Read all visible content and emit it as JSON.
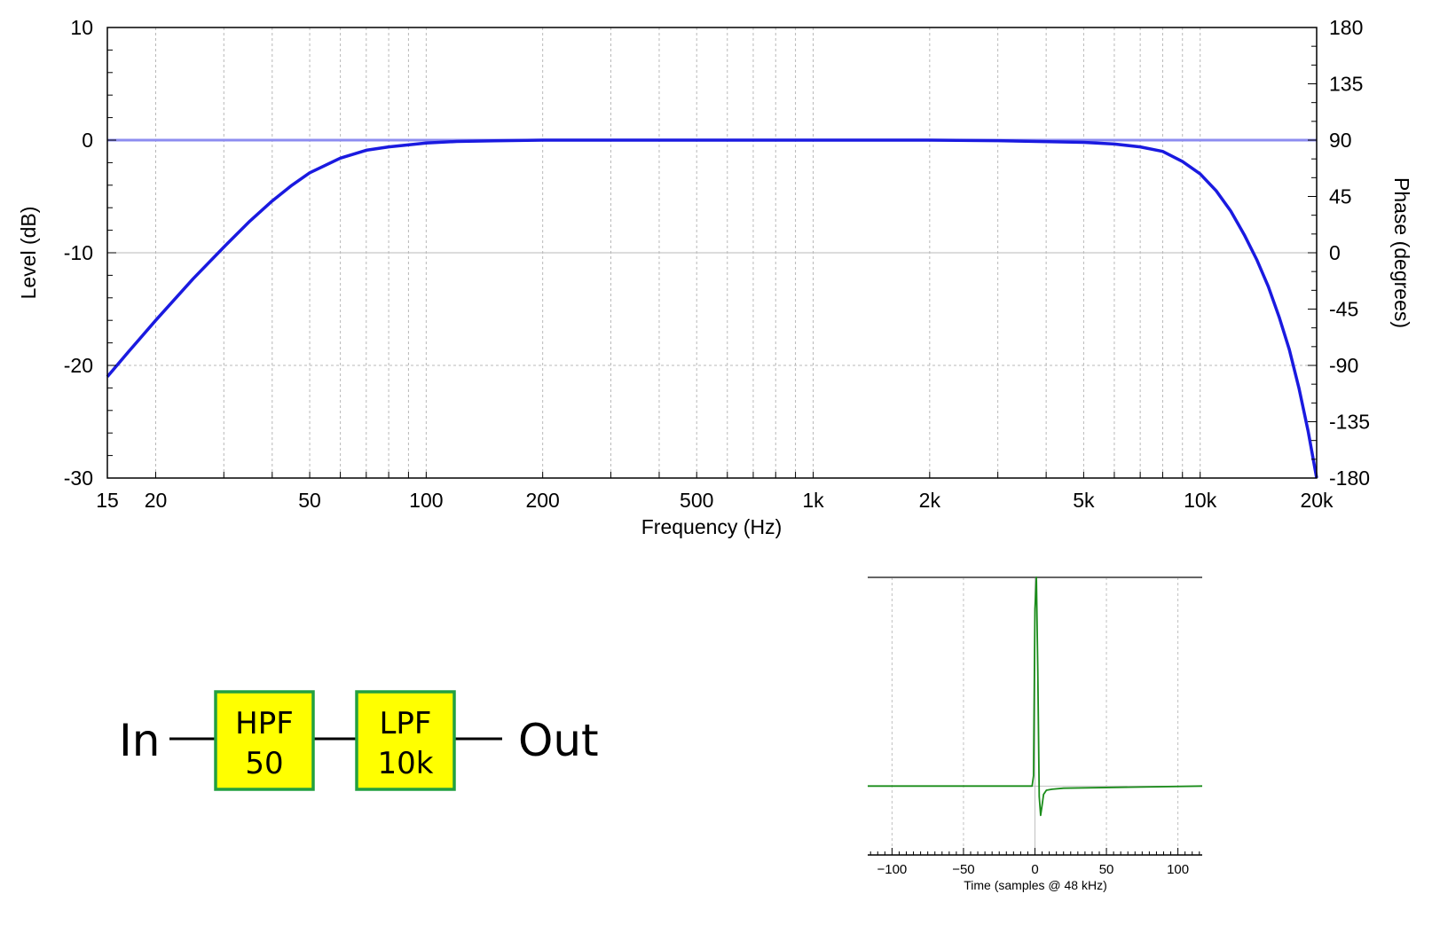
{
  "chart_data": [
    {
      "type": "line",
      "title": "",
      "xlabel": "Frequency (Hz)",
      "ylabel": "Level (dB)",
      "y2label": "Phase (degrees)",
      "xscale": "log",
      "xlim": [
        15,
        20000
      ],
      "ylim": [
        -30,
        10
      ],
      "y2lim": [
        -180,
        180
      ],
      "grid": true,
      "x_ticks": [
        {
          "v": 15,
          "label": "15"
        },
        {
          "v": 20,
          "label": "20"
        },
        {
          "v": 50,
          "label": "50"
        },
        {
          "v": 100,
          "label": "100"
        },
        {
          "v": 200,
          "label": "200"
        },
        {
          "v": 500,
          "label": "500"
        },
        {
          "v": 1000,
          "label": "1k"
        },
        {
          "v": 2000,
          "label": "2k"
        },
        {
          "v": 5000,
          "label": "5k"
        },
        {
          "v": 10000,
          "label": "10k"
        },
        {
          "v": 20000,
          "label": "20k"
        }
      ],
      "y_ticks": [
        {
          "v": 10,
          "label": "10"
        },
        {
          "v": 0,
          "label": "0"
        },
        {
          "v": -10,
          "label": "-10"
        },
        {
          "v": -20,
          "label": "-20"
        },
        {
          "v": -30,
          "label": "-30"
        }
      ],
      "y2_ticks": [
        {
          "v": 180,
          "label": "180"
        },
        {
          "v": 135,
          "label": "135"
        },
        {
          "v": 90,
          "label": "90"
        },
        {
          "v": 45,
          "label": "45"
        },
        {
          "v": 0,
          "label": "0"
        },
        {
          "v": -45,
          "label": "-45"
        },
        {
          "v": -90,
          "label": "-90"
        },
        {
          "v": -135,
          "label": "-135"
        },
        {
          "v": -180,
          "label": "-180"
        }
      ],
      "series": [
        {
          "color": "#1a1ae0",
          "x": [
            15,
            17,
            20,
            25,
            30,
            35,
            40,
            45,
            50,
            60,
            70,
            80,
            100,
            120,
            150,
            200,
            500,
            1000,
            2000,
            3000,
            5000,
            6000,
            7000,
            8000,
            9000,
            10000,
            11000,
            12000,
            13000,
            14000,
            15000,
            16000,
            17000,
            18000,
            19000,
            20000
          ],
          "values": [
            -21,
            -18.8,
            -16,
            -12.3,
            -9.5,
            -7.2,
            -5.4,
            -4.0,
            -2.9,
            -1.6,
            -0.9,
            -0.6,
            -0.25,
            -0.12,
            -0.06,
            0,
            0,
            0,
            0,
            -0.05,
            -0.2,
            -0.35,
            -0.6,
            -1.0,
            -1.9,
            -3.0,
            -4.5,
            -6.3,
            -8.4,
            -10.6,
            -13.0,
            -15.7,
            -18.6,
            -22.0,
            -25.8,
            -30
          ]
        },
        {
          "color": "#8c8cf0",
          "axis": "right",
          "x": [
            15,
            20000
          ],
          "values": [
            90,
            90
          ]
        }
      ]
    },
    {
      "type": "line",
      "title": "",
      "xlabel": "Time (samples @ 48 kHz)",
      "ylabel": "",
      "xlim": [
        -117,
        117
      ],
      "ylim": [
        -0.33,
        1.0
      ],
      "grid": true,
      "x_ticks": [
        {
          "v": -100,
          "label": "−100"
        },
        {
          "v": -50,
          "label": "−50"
        },
        {
          "v": 0,
          "label": "0"
        },
        {
          "v": 50,
          "label": "50"
        },
        {
          "v": 100,
          "label": "100"
        }
      ],
      "series": [
        {
          "color": "#1a8c1a",
          "x": [
            -117,
            -2,
            -1,
            0,
            1,
            2,
            3,
            4,
            5,
            6,
            8,
            12,
            20,
            40,
            117
          ],
          "values": [
            0,
            0,
            0.05,
            0.85,
            1.0,
            0.55,
            -0.05,
            -0.14,
            -0.09,
            -0.04,
            -0.02,
            -0.015,
            -0.01,
            -0.008,
            0
          ]
        }
      ]
    }
  ],
  "diagram": {
    "input_label": "In",
    "output_label": "Out",
    "blocks": [
      {
        "line1": "HPF",
        "line2": "50",
        "fill": "#ffff00",
        "border": "#22a040"
      },
      {
        "line1": "LPF",
        "line2": "10k",
        "fill": "#ffff00",
        "border": "#22a040"
      }
    ]
  }
}
